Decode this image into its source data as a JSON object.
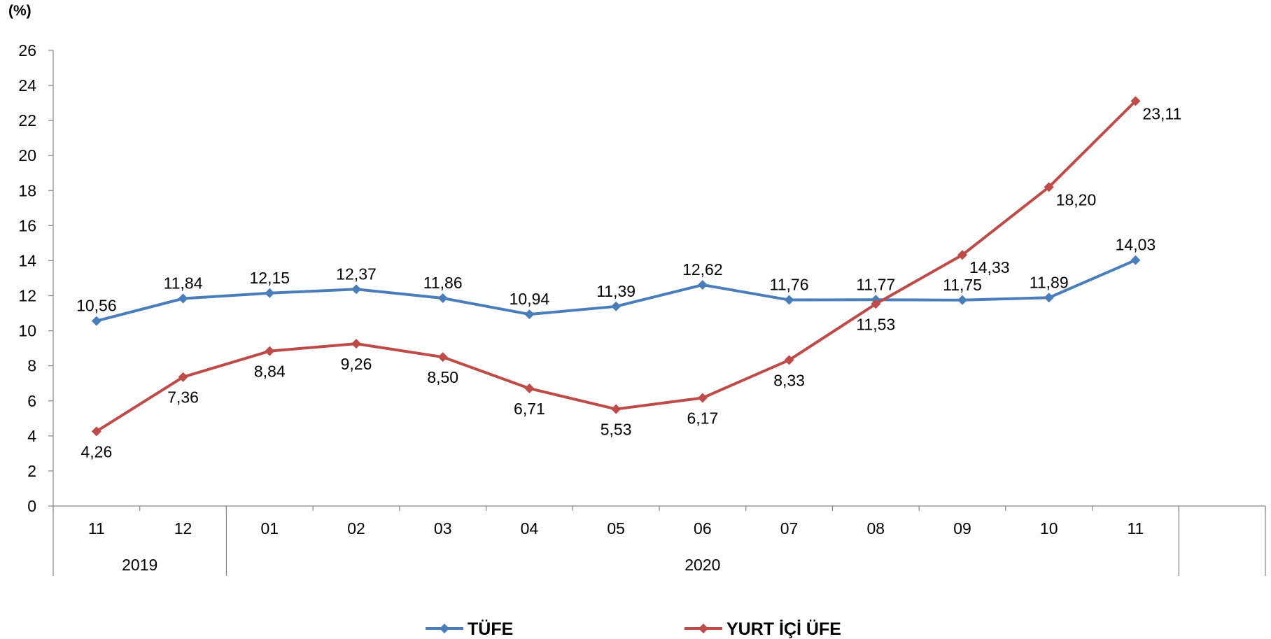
{
  "chart_data": {
    "type": "line",
    "unit_label": "(%)",
    "categories": [
      "11",
      "12",
      "01",
      "02",
      "03",
      "04",
      "05",
      "06",
      "07",
      "08",
      "09",
      "10",
      "11"
    ],
    "year_groups": [
      {
        "label": "2019",
        "count": 2
      },
      {
        "label": "2020",
        "count": 11
      }
    ],
    "ylim": [
      0,
      26
    ],
    "yticks": [
      0,
      2,
      4,
      6,
      8,
      10,
      12,
      14,
      16,
      18,
      20,
      22,
      24,
      26
    ],
    "grid": false,
    "legend_position": "bottom",
    "series": [
      {
        "name": "TÜFE",
        "color": "#4a7ebb",
        "marker": "diamond",
        "values": [
          10.56,
          11.84,
          12.15,
          12.37,
          11.86,
          10.94,
          11.39,
          12.62,
          11.76,
          11.77,
          11.75,
          11.89,
          14.03
        ],
        "labels": [
          "10,56",
          "11,84",
          "12,15",
          "12,37",
          "11,86",
          "10,94",
          "11,39",
          "12,62",
          "11,76",
          "11,77",
          "11,75",
          "11,89",
          "14,03"
        ],
        "label_side": [
          "above",
          "above",
          "above",
          "above",
          "above",
          "above",
          "above",
          "above",
          "above",
          "above",
          "above",
          "above",
          "above"
        ]
      },
      {
        "name": "YURT İÇİ ÜFE",
        "color": "#be4b48",
        "marker": "diamond",
        "values": [
          4.26,
          7.36,
          8.84,
          9.26,
          8.5,
          6.71,
          5.53,
          6.17,
          8.33,
          11.53,
          14.33,
          18.2,
          23.11
        ],
        "labels": [
          "4,26",
          "7,36",
          "8,84",
          "9,26",
          "8,50",
          "6,71",
          "5,53",
          "6,17",
          "8,33",
          "11,53",
          "14,33",
          "18,20",
          "23,11"
        ],
        "label_side": [
          "below",
          "below",
          "below",
          "below",
          "below",
          "below",
          "below",
          "below",
          "below",
          "below",
          "right",
          "right",
          "right"
        ]
      }
    ]
  }
}
